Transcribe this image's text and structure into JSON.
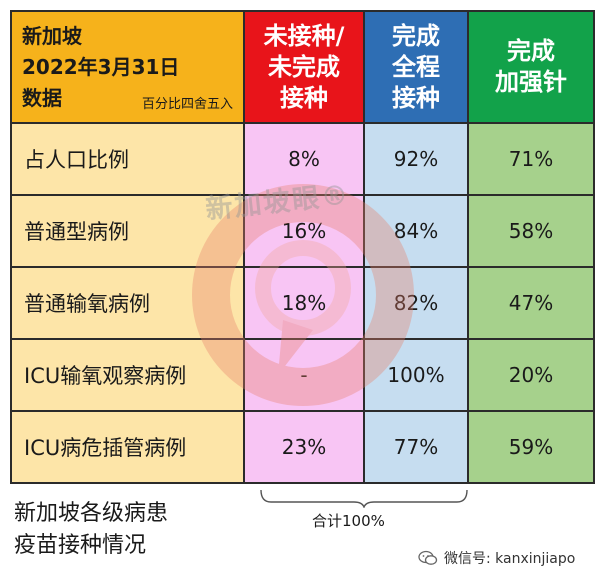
{
  "header": {
    "title_line1": "新加坡",
    "title_line2": "2022年3月31日",
    "title_line3": "数据",
    "rounding_note": "百分比四舍五入",
    "col_unvaccinated_line1": "未接种/",
    "col_unvaccinated_line2": "未完成",
    "col_unvaccinated_line3": "接种",
    "col_full_line1": "完成",
    "col_full_line2": "全程",
    "col_full_line3": "接种",
    "col_booster_line1": "完成",
    "col_booster_line2": "加强针"
  },
  "rows": [
    {
      "label": "占人口比例",
      "unvaccinated": "8%",
      "full": "92%",
      "booster": "71%"
    },
    {
      "label": "普通型病例",
      "unvaccinated": "16%",
      "full": "84%",
      "booster": "58%"
    },
    {
      "label": "普通输氧病例",
      "unvaccinated": "18%",
      "full": "82%",
      "booster": "47%"
    },
    {
      "label": "ICU输氧观察病例",
      "unvaccinated": "-",
      "full": "100%",
      "booster": "20%"
    },
    {
      "label": "ICU病危插管病例",
      "unvaccinated": "23%",
      "full": "77%",
      "booster": "59%"
    }
  ],
  "caption": {
    "line1": "新加坡各级病患",
    "line2": "疫苗接种情况"
  },
  "sum_label": "合计100%",
  "watermark_text": "新加坡眼®",
  "wechat_label": "微信号: kanxinjiapo",
  "colors": {
    "header_title_bg": "#f6b21b",
    "unvaccinated_header": "#e8141a",
    "full_header": "#2e6eb4",
    "booster_header": "#12a24a",
    "label_bg": "#fde5a8",
    "unvaccinated_bg": "#f8c5f4",
    "full_bg": "#c6ddf0",
    "booster_bg": "#a6d18c"
  }
}
